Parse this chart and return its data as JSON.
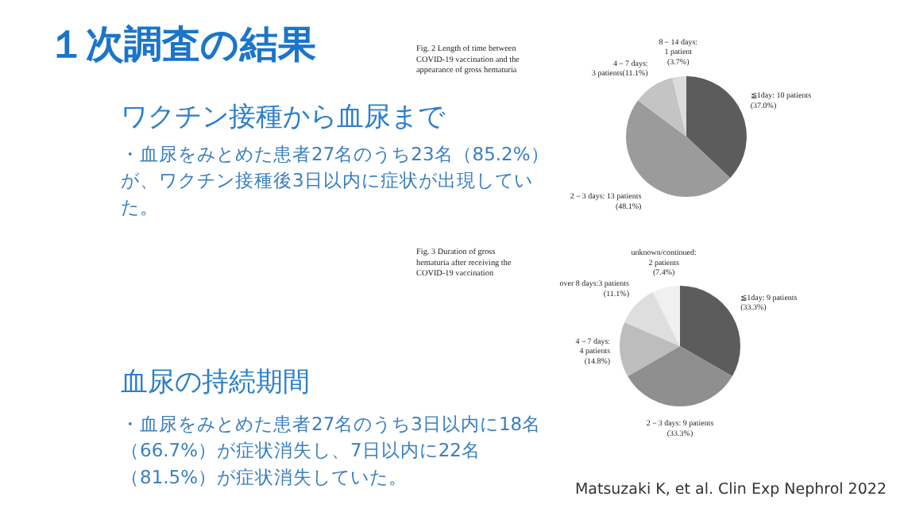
{
  "chart_data": [
    {
      "type": "other",
      "title": "１次調査の結果",
      "annotations": [
        "ワクチン接種から血尿まで",
        "・血尿をみとめた患者27名のうち23名（85.2%）が、ワクチン接種後3日以内に症状が出現していた。",
        "血尿の持続期間",
        "・血尿をみとめた患者27名のうち3日以内に18名（66.7%）が症状消失し、7日以内に22名（81.5%）が症状消失していた。",
        "Matsuzaki K, et al. Clin Exp Nephrol 2022"
      ]
    },
    {
      "type": "pie",
      "title": "Fig. 2  Length of time between\nCOVID-19 vaccination and the\nappearance of gross hematuria",
      "categories": [
        "≦1day: 10 patients\n(37.0%)",
        "2－3 days: 13 patients\n(48.1%)",
        "4－7 days:\n3 patients(11.1%)",
        "8－14 days:\n1 patient\n(3.7%)"
      ],
      "values": [
        10,
        13,
        3,
        1
      ],
      "colors": [
        "#5c5c5c",
        "#9b9b9b",
        "#c4c4c4",
        "#dcdcdc"
      ]
    },
    {
      "type": "pie",
      "title": "Fig. 3  Duration of gross\nhematuria after receiving the\nCOVID-19 vaccination",
      "categories": [
        "≦1day: 9 patients\n(33.3%)",
        "2－3 days: 9 patients\n(33.3%)",
        "4－7 days:\n4 patients\n(14.8%)",
        "over 8 days:3 patients\n(11.1%)",
        "unknown/continued:\n2 patients\n(7.4%)"
      ],
      "values": [
        9,
        9,
        4,
        3,
        2
      ],
      "colors": [
        "#5c5c5c",
        "#8f8f8f",
        "#bdbdbd",
        "#dedede",
        "#f0f0f0"
      ]
    }
  ]
}
